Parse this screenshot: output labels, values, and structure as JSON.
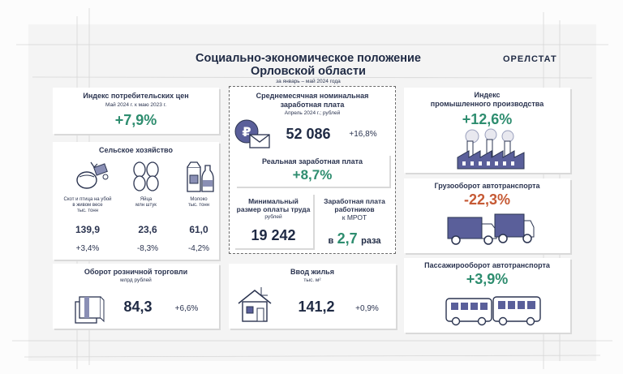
{
  "header": {
    "title_line1": "Социально-экономическое положение",
    "title_line2": "Орловской области",
    "period": "за январь – май 2024 года",
    "logo": "ОРЕЛСТАТ"
  },
  "cpi": {
    "title": "Индекс потребительских цен",
    "subtitle": "Май 2024 г. к маю 2023 г.",
    "value": "+7,9%"
  },
  "agriculture": {
    "title": "Сельское хозяйство",
    "items": [
      {
        "label1": "Скот и птица на убой",
        "label2": "в живом весе",
        "label3": "тыс. тонн",
        "value": "139,9",
        "change": "+3,4%",
        "icon": "livestock-icon"
      },
      {
        "label1": "Яйца",
        "label2": "млн штук",
        "label3": "",
        "value": "23,6",
        "change": "-8,3%",
        "icon": "eggs-icon"
      },
      {
        "label1": "Молоко",
        "label2": "тыс. тонн",
        "label3": "",
        "value": "61,0",
        "change": "-4,2%",
        "icon": "milk-icon"
      }
    ]
  },
  "wage": {
    "title1": "Среднемесячная номинальная",
    "title2": "заработная плата",
    "subtitle": "Апрель 2024 г.; рублей",
    "value": "52 086",
    "change": "+16,8%"
  },
  "real_wage": {
    "title": "Реальная заработная плата",
    "value": "+8,7%"
  },
  "min_wage": {
    "title1": "Минимальный",
    "title2": "размер оплаты труда",
    "unit": "рублей",
    "value": "19 242"
  },
  "wage_ratio": {
    "title1": "Заработная плата",
    "title2": "работников",
    "title3": "к МРОТ",
    "prefix": "в",
    "value": "2,7",
    "suffix": "раза"
  },
  "industry": {
    "title1": "Индекс",
    "title2": "промышленного производства",
    "value": "+12,6%"
  },
  "freight": {
    "title": "Грузооборот автотранспорта",
    "value": "-22,3%"
  },
  "passenger": {
    "title": "Пассажирооборот автотранспорта",
    "value": "+3,9%"
  },
  "retail": {
    "title": "Оборот розничной торговли",
    "unit": "млрд рублей",
    "value": "84,3",
    "change": "+6,6%"
  },
  "housing": {
    "title": "Ввод жилья",
    "unit": "тыс. м²",
    "value": "141,2",
    "change": "+0,9%"
  },
  "colors": {
    "green": "#2e8d6f",
    "red": "#c65a35",
    "navy": "#1f2a44",
    "blue": "#1f4f86"
  }
}
